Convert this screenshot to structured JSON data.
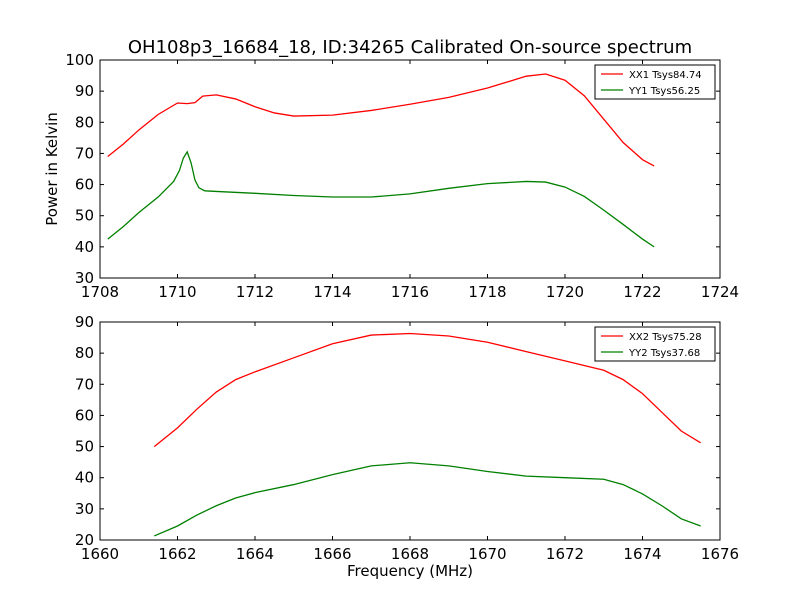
{
  "figure": {
    "title": "OH108p3_16684_18, ID:34265 Calibrated On-source spectrum",
    "xlabel": "Frequency (MHz)",
    "ylabel": "Power in Kelvin"
  },
  "chart_data": [
    {
      "type": "line",
      "title": "OH108p3_16684_18, ID:34265 Calibrated On-source spectrum",
      "xlabel": "",
      "ylabel": "Power in Kelvin",
      "xlim": [
        1708,
        1724
      ],
      "ylim": [
        30,
        100
      ],
      "xticks": [
        1708,
        1710,
        1712,
        1714,
        1716,
        1718,
        1720,
        1722,
        1724
      ],
      "yticks": [
        30,
        40,
        50,
        60,
        70,
        80,
        90,
        100
      ],
      "grid": false,
      "legend_position": "top-right",
      "series": [
        {
          "name": "XX1 Tsys84.74",
          "color": "#ff0000",
          "x": [
            1708.2,
            1708.6,
            1709.0,
            1709.5,
            1710.0,
            1710.25,
            1710.45,
            1710.65,
            1711.0,
            1711.5,
            1712.0,
            1712.5,
            1713.0,
            1714.0,
            1715.0,
            1716.0,
            1717.0,
            1718.0,
            1719.0,
            1719.5,
            1720.0,
            1720.5,
            1721.0,
            1721.5,
            1722.0,
            1722.3
          ],
          "y": [
            69,
            73,
            77.5,
            82.5,
            86.2,
            86.0,
            86.3,
            88.4,
            88.8,
            87.5,
            85.0,
            83.0,
            82.0,
            82.3,
            83.8,
            85.8,
            88.0,
            91.0,
            94.8,
            95.5,
            93.5,
            88.5,
            81.0,
            73.5,
            68.0,
            66.0
          ]
        },
        {
          "name": "YY1 Tsys56.25",
          "color": "#008000",
          "x": [
            1708.2,
            1708.6,
            1709.0,
            1709.5,
            1709.9,
            1710.05,
            1710.15,
            1710.25,
            1710.35,
            1710.45,
            1710.55,
            1710.7,
            1711.0,
            1712.0,
            1713.0,
            1714.0,
            1715.0,
            1716.0,
            1717.0,
            1718.0,
            1719.0,
            1719.5,
            1720.0,
            1720.5,
            1721.0,
            1721.5,
            1722.0,
            1722.3
          ],
          "y": [
            42.5,
            46.5,
            51.0,
            56.0,
            61.0,
            64.5,
            68.5,
            70.5,
            67.0,
            61.5,
            59.0,
            58.0,
            57.8,
            57.2,
            56.5,
            56.0,
            56.0,
            57.0,
            58.8,
            60.3,
            61.0,
            60.8,
            59.2,
            56.2,
            51.8,
            47.2,
            42.5,
            40.0
          ]
        }
      ]
    },
    {
      "type": "line",
      "title": "",
      "xlabel": "Frequency (MHz)",
      "ylabel": "",
      "xlim": [
        1660,
        1676
      ],
      "ylim": [
        20,
        90
      ],
      "xticks": [
        1660,
        1662,
        1664,
        1666,
        1668,
        1670,
        1672,
        1674,
        1676
      ],
      "yticks": [
        20,
        30,
        40,
        50,
        60,
        70,
        80,
        90
      ],
      "grid": false,
      "legend_position": "top-right",
      "series": [
        {
          "name": "XX2 Tsys75.28",
          "color": "#ff0000",
          "x": [
            1661.4,
            1662.0,
            1662.5,
            1663.0,
            1663.5,
            1664.0,
            1665.0,
            1666.0,
            1667.0,
            1668.0,
            1669.0,
            1670.0,
            1671.0,
            1672.0,
            1673.0,
            1673.5,
            1674.0,
            1674.5,
            1675.0,
            1675.5
          ],
          "y": [
            50.0,
            56.0,
            62.0,
            67.5,
            71.5,
            74.0,
            78.5,
            83.0,
            85.8,
            86.3,
            85.5,
            83.5,
            80.5,
            77.5,
            74.5,
            71.5,
            67.0,
            61.0,
            55.0,
            51.2
          ]
        },
        {
          "name": "YY2 Tsys37.68",
          "color": "#008000",
          "x": [
            1661.4,
            1662.0,
            1662.5,
            1663.0,
            1663.5,
            1664.0,
            1665.0,
            1666.0,
            1667.0,
            1668.0,
            1669.0,
            1670.0,
            1671.0,
            1672.0,
            1673.0,
            1673.5,
            1674.0,
            1674.5,
            1675.0,
            1675.5
          ],
          "y": [
            21.3,
            24.5,
            28.0,
            31.0,
            33.5,
            35.2,
            37.8,
            41.0,
            43.8,
            44.8,
            43.8,
            42.0,
            40.5,
            40.0,
            39.5,
            37.8,
            34.8,
            31.0,
            26.8,
            24.5
          ]
        }
      ]
    }
  ]
}
